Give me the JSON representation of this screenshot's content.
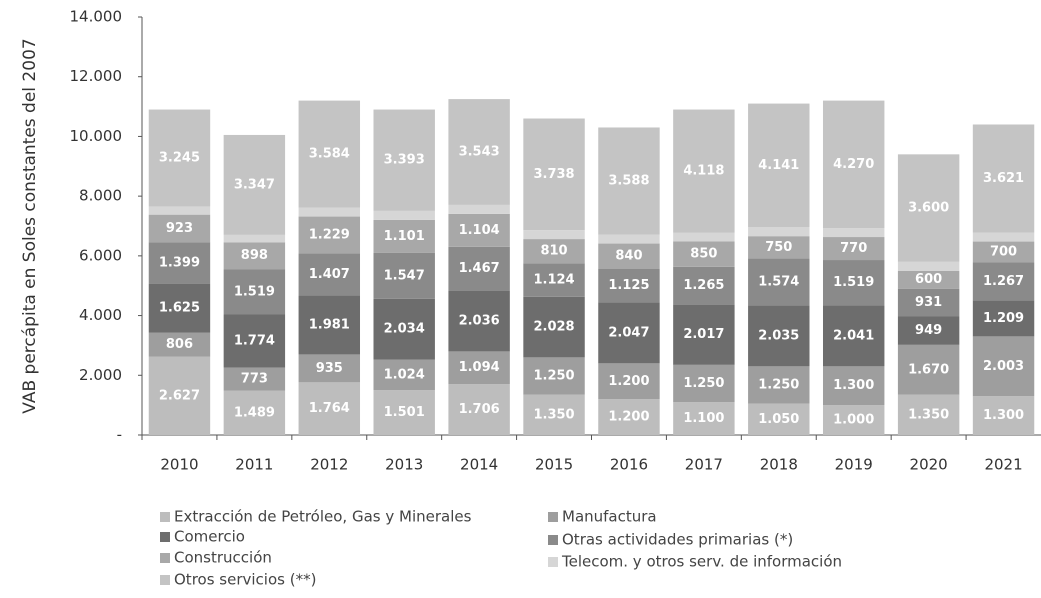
{
  "chart_data": {
    "type": "stacked_bar",
    "y_label": "VAB percápita en Soles constantes del 2007",
    "categories": [
      "2010",
      "2011",
      "2012",
      "2013",
      "2014",
      "2015",
      "2016",
      "2017",
      "2018",
      "2019",
      "2020",
      "2021"
    ],
    "series": [
      {
        "name": "Extracción de Petróleo, Gas y Minerales",
        "color": "#bdbdbd",
        "values": [
          2627,
          1489,
          1764,
          1501,
          1706,
          1350,
          1200,
          1100,
          1050,
          1000,
          1350,
          1300
        ],
        "value_labels": [
          "2.627",
          "1.489",
          "1.764",
          "1.501",
          "1.706",
          "1.350",
          "1.200",
          "1.100",
          "1.050",
          "1.000",
          "1.350",
          "1.300"
        ]
      },
      {
        "name": "Manufactura",
        "color": "#9e9e9e",
        "values": [
          806,
          773,
          935,
          1024,
          1094,
          1250,
          1200,
          1250,
          1250,
          1300,
          1670,
          2003
        ],
        "value_labels": [
          "806",
          "773",
          "935",
          "1.024",
          "1.094",
          "1.250",
          "1.200",
          "1.250",
          "1.250",
          "1.300",
          "1.670",
          "2.003"
        ]
      },
      {
        "name": "Comercio",
        "color": "#6d6d6d",
        "values": [
          1625,
          1774,
          1981,
          2034,
          2036,
          2028,
          2047,
          2017,
          2035,
          2041,
          949,
          1209
        ],
        "value_labels": [
          "1.625",
          "1.774",
          "1.981",
          "2.034",
          "2.036",
          "2.028",
          "2.047",
          "2.017",
          "2.035",
          "2.041",
          "949",
          "1.209"
        ]
      },
      {
        "name": "Otras actividades primarias (*)",
        "color": "#8a8a8a",
        "values": [
          1399,
          1519,
          1407,
          1547,
          1467,
          1124,
          1125,
          1265,
          1574,
          1519,
          931,
          1267
        ],
        "value_labels": [
          "1.399",
          "1.519",
          "1.407",
          "1.547",
          "1.467",
          "1.124",
          "1.125",
          "1.265",
          "1.574",
          "1.519",
          "931",
          "1.267"
        ]
      },
      {
        "name": "Construcción",
        "color": "#a8a8a8",
        "values": [
          923,
          898,
          1229,
          1101,
          1104,
          810,
          840,
          850,
          750,
          770,
          600,
          700
        ],
        "value_labels": [
          "923",
          "898",
          "1.229",
          "1.101",
          "1.104",
          "810",
          "840",
          "850",
          "750",
          "770",
          "600",
          "700"
        ]
      },
      {
        "name": "Telecom. y otros serv. de información",
        "color": "#d6d6d6",
        "values": [
          275,
          250,
          300,
          300,
          300,
          300,
          300,
          300,
          300,
          300,
          300,
          300
        ]
      },
      {
        "name": "Otros servicios (**)",
        "color": "#c4c4c4",
        "values": [
          3245,
          3347,
          3584,
          3393,
          3543,
          3738,
          3588,
          4118,
          4141,
          4270,
          3600,
          3621
        ],
        "value_labels": [
          "3.245",
          "3.347",
          "3.584",
          "3.393",
          "3.543",
          "3.738",
          "3.588",
          "4.118",
          "4.141",
          "4.270",
          "3.600",
          "3.621"
        ]
      }
    ],
    "ylim": [
      0,
      14000
    ],
    "yticks": [
      {
        "value": 0,
        "label": "-"
      },
      {
        "value": 2000,
        "label": "2.000"
      },
      {
        "value": 4000,
        "label": "4.000"
      },
      {
        "value": 6000,
        "label": "6.000"
      },
      {
        "value": 8000,
        "label": "8.000"
      },
      {
        "value": 10000,
        "label": "10.000"
      },
      {
        "value": 12000,
        "label": "12.000"
      },
      {
        "value": 14000,
        "label": "14.000"
      }
    ],
    "grid": false
  }
}
